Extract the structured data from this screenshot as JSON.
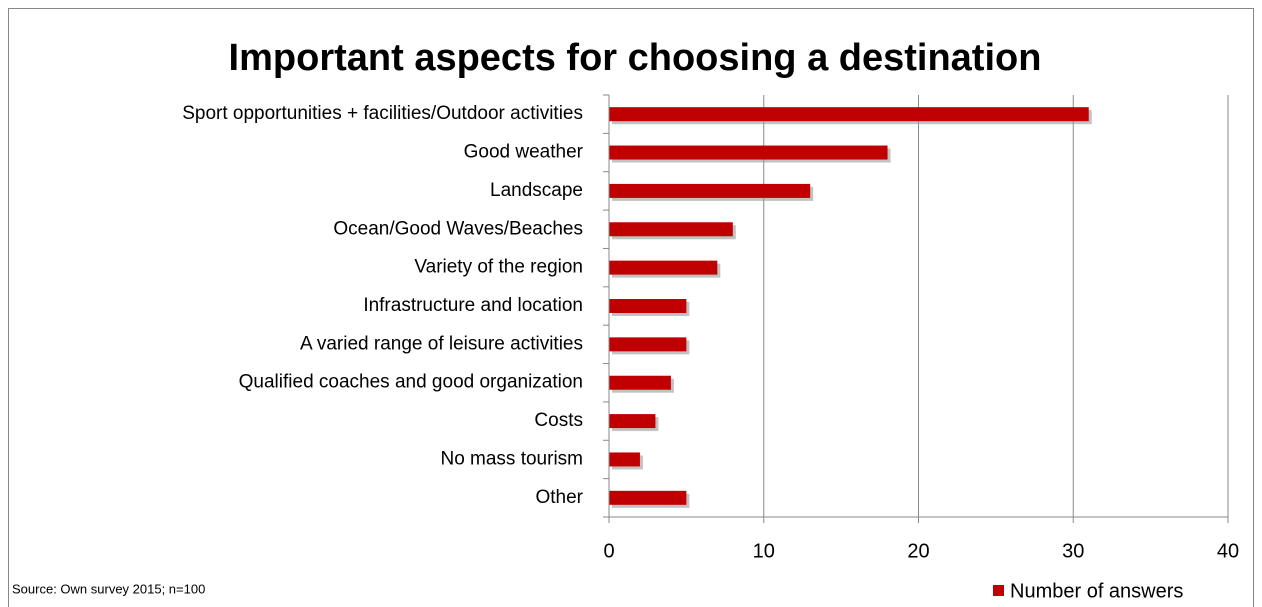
{
  "chart_data": {
    "type": "bar",
    "orientation": "horizontal",
    "title": "Important aspects for choosing a destination",
    "categories": [
      "Sport opportunities + facilities/Outdoor activities",
      "Good weather",
      "Landscape",
      "Ocean/Good Waves/Beaches",
      "Variety of the region",
      "Infrastructure and location",
      "A varied range of leisure activities",
      "Qualified coaches and good organization",
      "Costs",
      "No mass tourism",
      "Other"
    ],
    "series": [
      {
        "name": "Number of answers",
        "color": "#c00000",
        "values": [
          31,
          18,
          13,
          8,
          7,
          5,
          5,
          4,
          3,
          2,
          5
        ]
      }
    ],
    "xlim": [
      0,
      40
    ],
    "xticks": [
      0,
      10,
      20,
      30,
      40
    ],
    "grid": true,
    "legend": "bottom-right",
    "source": "Source: Own survey 2015; n=100"
  }
}
